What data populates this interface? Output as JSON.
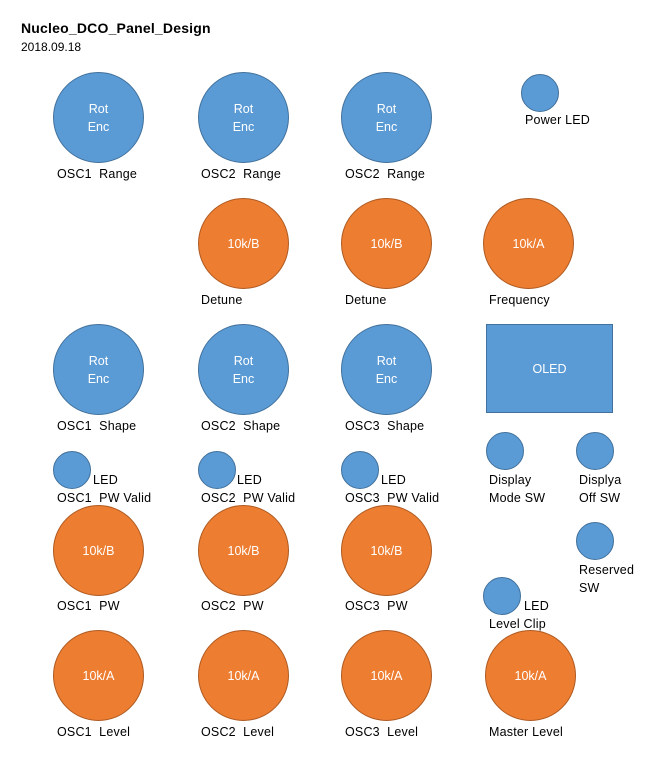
{
  "header": {
    "title": "Nucleo_DCO_Panel_Design",
    "date": "2018.09.18"
  },
  "colors": {
    "blue": "#5b9bd5",
    "blue_border": "#41719c",
    "orange": "#ed7d31",
    "orange_border": "#ae5a21"
  },
  "components": {
    "osc1_range": {
      "knob": "Rot\nEnc",
      "label": "OSC1  Range"
    },
    "osc2_range": {
      "knob": "Rot\nEnc",
      "label": "OSC2  Range"
    },
    "osc2_range_b": {
      "knob": "Rot\nEnc",
      "label": "OSC2  Range"
    },
    "power_led": {
      "label": "Power LED"
    },
    "detune_1": {
      "knob": "10k/B",
      "label": "Detune"
    },
    "detune_2": {
      "knob": "10k/B",
      "label": "Detune"
    },
    "frequency": {
      "knob": "10k/A",
      "label": "Frequency"
    },
    "osc1_shape": {
      "knob": "Rot\nEnc",
      "label": "OSC1  Shape"
    },
    "osc2_shape": {
      "knob": "Rot\nEnc",
      "label": "OSC2  Shape"
    },
    "osc3_shape": {
      "knob": "Rot\nEnc",
      "label": "OSC3  Shape"
    },
    "oled": {
      "text": "OLED"
    },
    "osc1_pw_valid": {
      "led": "LED",
      "label": "OSC1  PW Valid"
    },
    "osc2_pw_valid": {
      "led": "LED",
      "label": "OSC2  PW Valid"
    },
    "osc3_pw_valid": {
      "led": "LED",
      "label": "OSC3  PW Valid"
    },
    "display_mode_sw": {
      "label": "Display\nMode SW"
    },
    "display_off_sw": {
      "label": "Displya\nOff SW"
    },
    "osc1_pw": {
      "knob": "10k/B",
      "label": "OSC1  PW"
    },
    "osc2_pw": {
      "knob": "10k/B",
      "label": "OSC2  PW"
    },
    "osc3_pw": {
      "knob": "10k/B",
      "label": "OSC3  PW"
    },
    "reserved_sw": {
      "label": "Reserved\nSW"
    },
    "level_clip": {
      "led": "LED",
      "label": "Level Clip"
    },
    "osc1_level": {
      "knob": "10k/A",
      "label": "OSC1  Level"
    },
    "osc2_level": {
      "knob": "10k/A",
      "label": "OSC2  Level"
    },
    "osc3_level": {
      "knob": "10k/A",
      "label": "OSC3  Level"
    },
    "master_level": {
      "knob": "10k/A",
      "label": "Master Level"
    }
  }
}
